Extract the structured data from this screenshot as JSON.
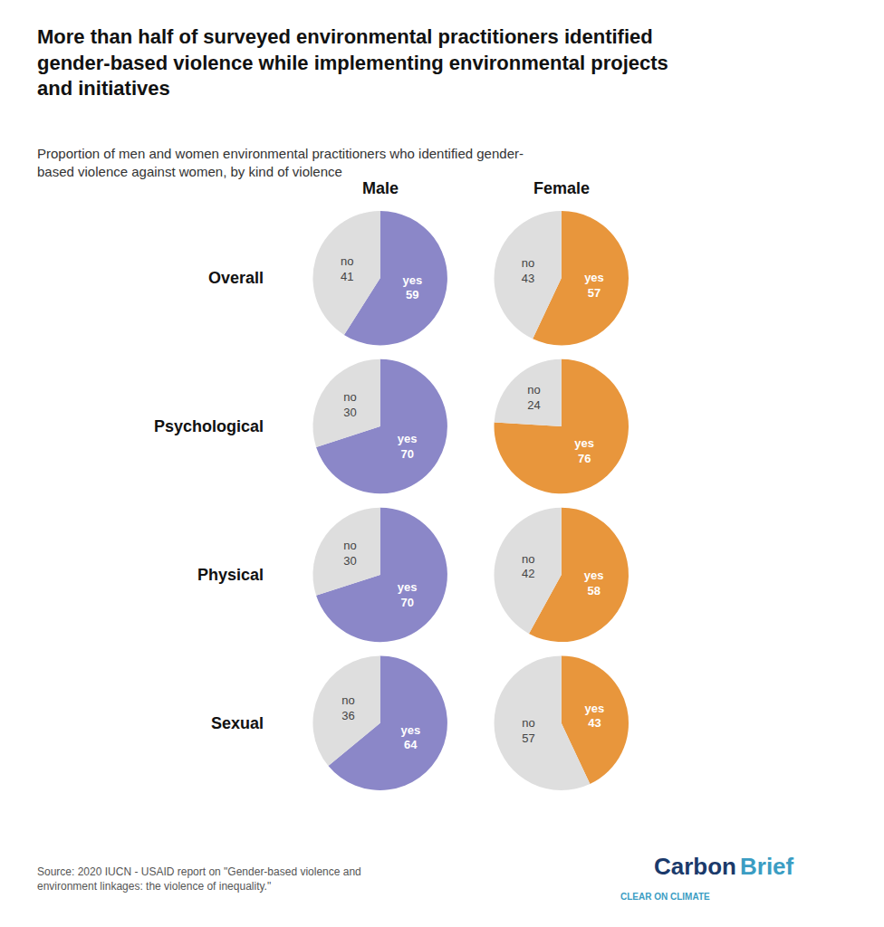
{
  "chart_data": {
    "type": "pie",
    "title": "More than half of surveyed environmental practitioners identified\ngender-based violence while implementing environmental projects\nand initiatives",
    "subtitle": "Proportion of men and women environmental practitioners who identified gender-\nbased violence against women, by kind of violence",
    "source": "Source: 2020 IUCN - USAID report on \"Gender-based violence and\nenvironment linkages: the violence of inequality.\"",
    "annotations": [
      {
        "text": "Carbon",
        "color": "#1B3A6B"
      },
      {
        "text": "Brief",
        "color": "#3B9DC3"
      },
      {
        "text": "CLEAR ON CLIMATE",
        "color": "#3B9DC3"
      }
    ],
    "categories": [
      "yes",
      "no"
    ],
    "columns": [
      "Male",
      "Female"
    ],
    "rows": [
      "Overall",
      "Psychological",
      "Physical",
      "Sexual"
    ],
    "data_labels": true,
    "pies": [
      {
        "column": "Male",
        "row": "Overall",
        "values": [
          59,
          41
        ],
        "colors": [
          "#8B87C8",
          "#DEDEDE"
        ]
      },
      {
        "column": "Female",
        "row": "Overall",
        "values": [
          57,
          43
        ],
        "colors": [
          "#E8963C",
          "#DEDEDE"
        ]
      },
      {
        "column": "Male",
        "row": "Psychological",
        "values": [
          70,
          30
        ],
        "colors": [
          "#8B87C8",
          "#DEDEDE"
        ]
      },
      {
        "column": "Female",
        "row": "Psychological",
        "values": [
          76,
          24
        ],
        "colors": [
          "#E8963C",
          "#DEDEDE"
        ]
      },
      {
        "column": "Male",
        "row": "Physical",
        "values": [
          70,
          30
        ],
        "colors": [
          "#8B87C8",
          "#DEDEDE"
        ]
      },
      {
        "column": "Female",
        "row": "Physical",
        "values": [
          58,
          42
        ],
        "colors": [
          "#E8963C",
          "#DEDEDE"
        ]
      },
      {
        "column": "Male",
        "row": "Sexual",
        "values": [
          64,
          36
        ],
        "colors": [
          "#8B87C8",
          "#DEDEDE"
        ]
      },
      {
        "column": "Female",
        "row": "Sexual",
        "values": [
          43,
          57
        ],
        "colors": [
          "#E8963C",
          "#DEDEDE"
        ]
      }
    ]
  }
}
